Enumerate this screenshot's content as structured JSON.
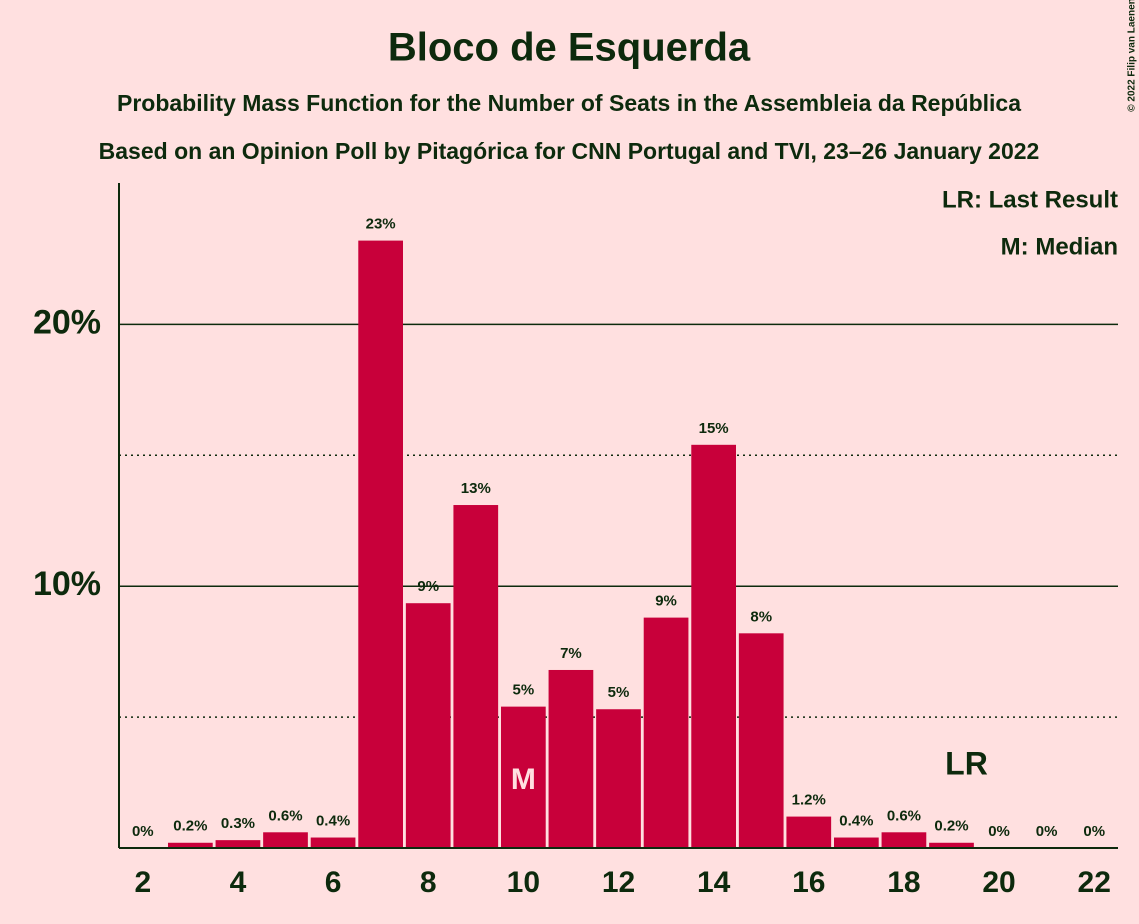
{
  "chart_data": {
    "type": "bar",
    "title": "Bloco de Esquerda",
    "subtitles": [
      "Probability Mass Function for the Number of Seats in the Assembleia da República",
      "Based on an Opinion Poll by Pitagórica for CNN Portugal and TVI, 23–26 January 2022"
    ],
    "x": [
      2,
      3,
      4,
      5,
      6,
      7,
      8,
      9,
      10,
      11,
      12,
      13,
      14,
      15,
      16,
      17,
      18,
      19,
      20,
      21,
      22
    ],
    "values": [
      0,
      0.2,
      0.3,
      0.6,
      0.4,
      23.2,
      9.35,
      13.1,
      5.4,
      6.8,
      5.3,
      8.8,
      15.4,
      8.2,
      1.2,
      0.4,
      0.6,
      0.2,
      0,
      0,
      0
    ],
    "value_labels": [
      "0%",
      "0.2%",
      "0.3%",
      "0.6%",
      "0.4%",
      "23%",
      "9%",
      "13%",
      "5%",
      "7%",
      "5%",
      "9%",
      "15%",
      "8%",
      "1.2%",
      "0.4%",
      "0.6%",
      "0.2%",
      "0%",
      "0%",
      "0%"
    ],
    "color": "#c8003a",
    "xlim": [
      1.5,
      22.5
    ],
    "xticks": [
      2,
      4,
      6,
      8,
      10,
      12,
      14,
      16,
      18,
      20,
      22
    ],
    "ylim": [
      0,
      25.4
    ],
    "yticks": [
      {
        "value": 10,
        "label": "10%"
      },
      {
        "value": 20,
        "label": "20%"
      }
    ],
    "minor_grid": [
      5,
      15
    ],
    "median": {
      "x": 10,
      "label": "M"
    },
    "last_result": {
      "x": 19,
      "label": "LR"
    },
    "legend": [
      "LR: Last Result",
      "M: Median"
    ],
    "copyright": "© 2022 Filip van Laenen"
  }
}
